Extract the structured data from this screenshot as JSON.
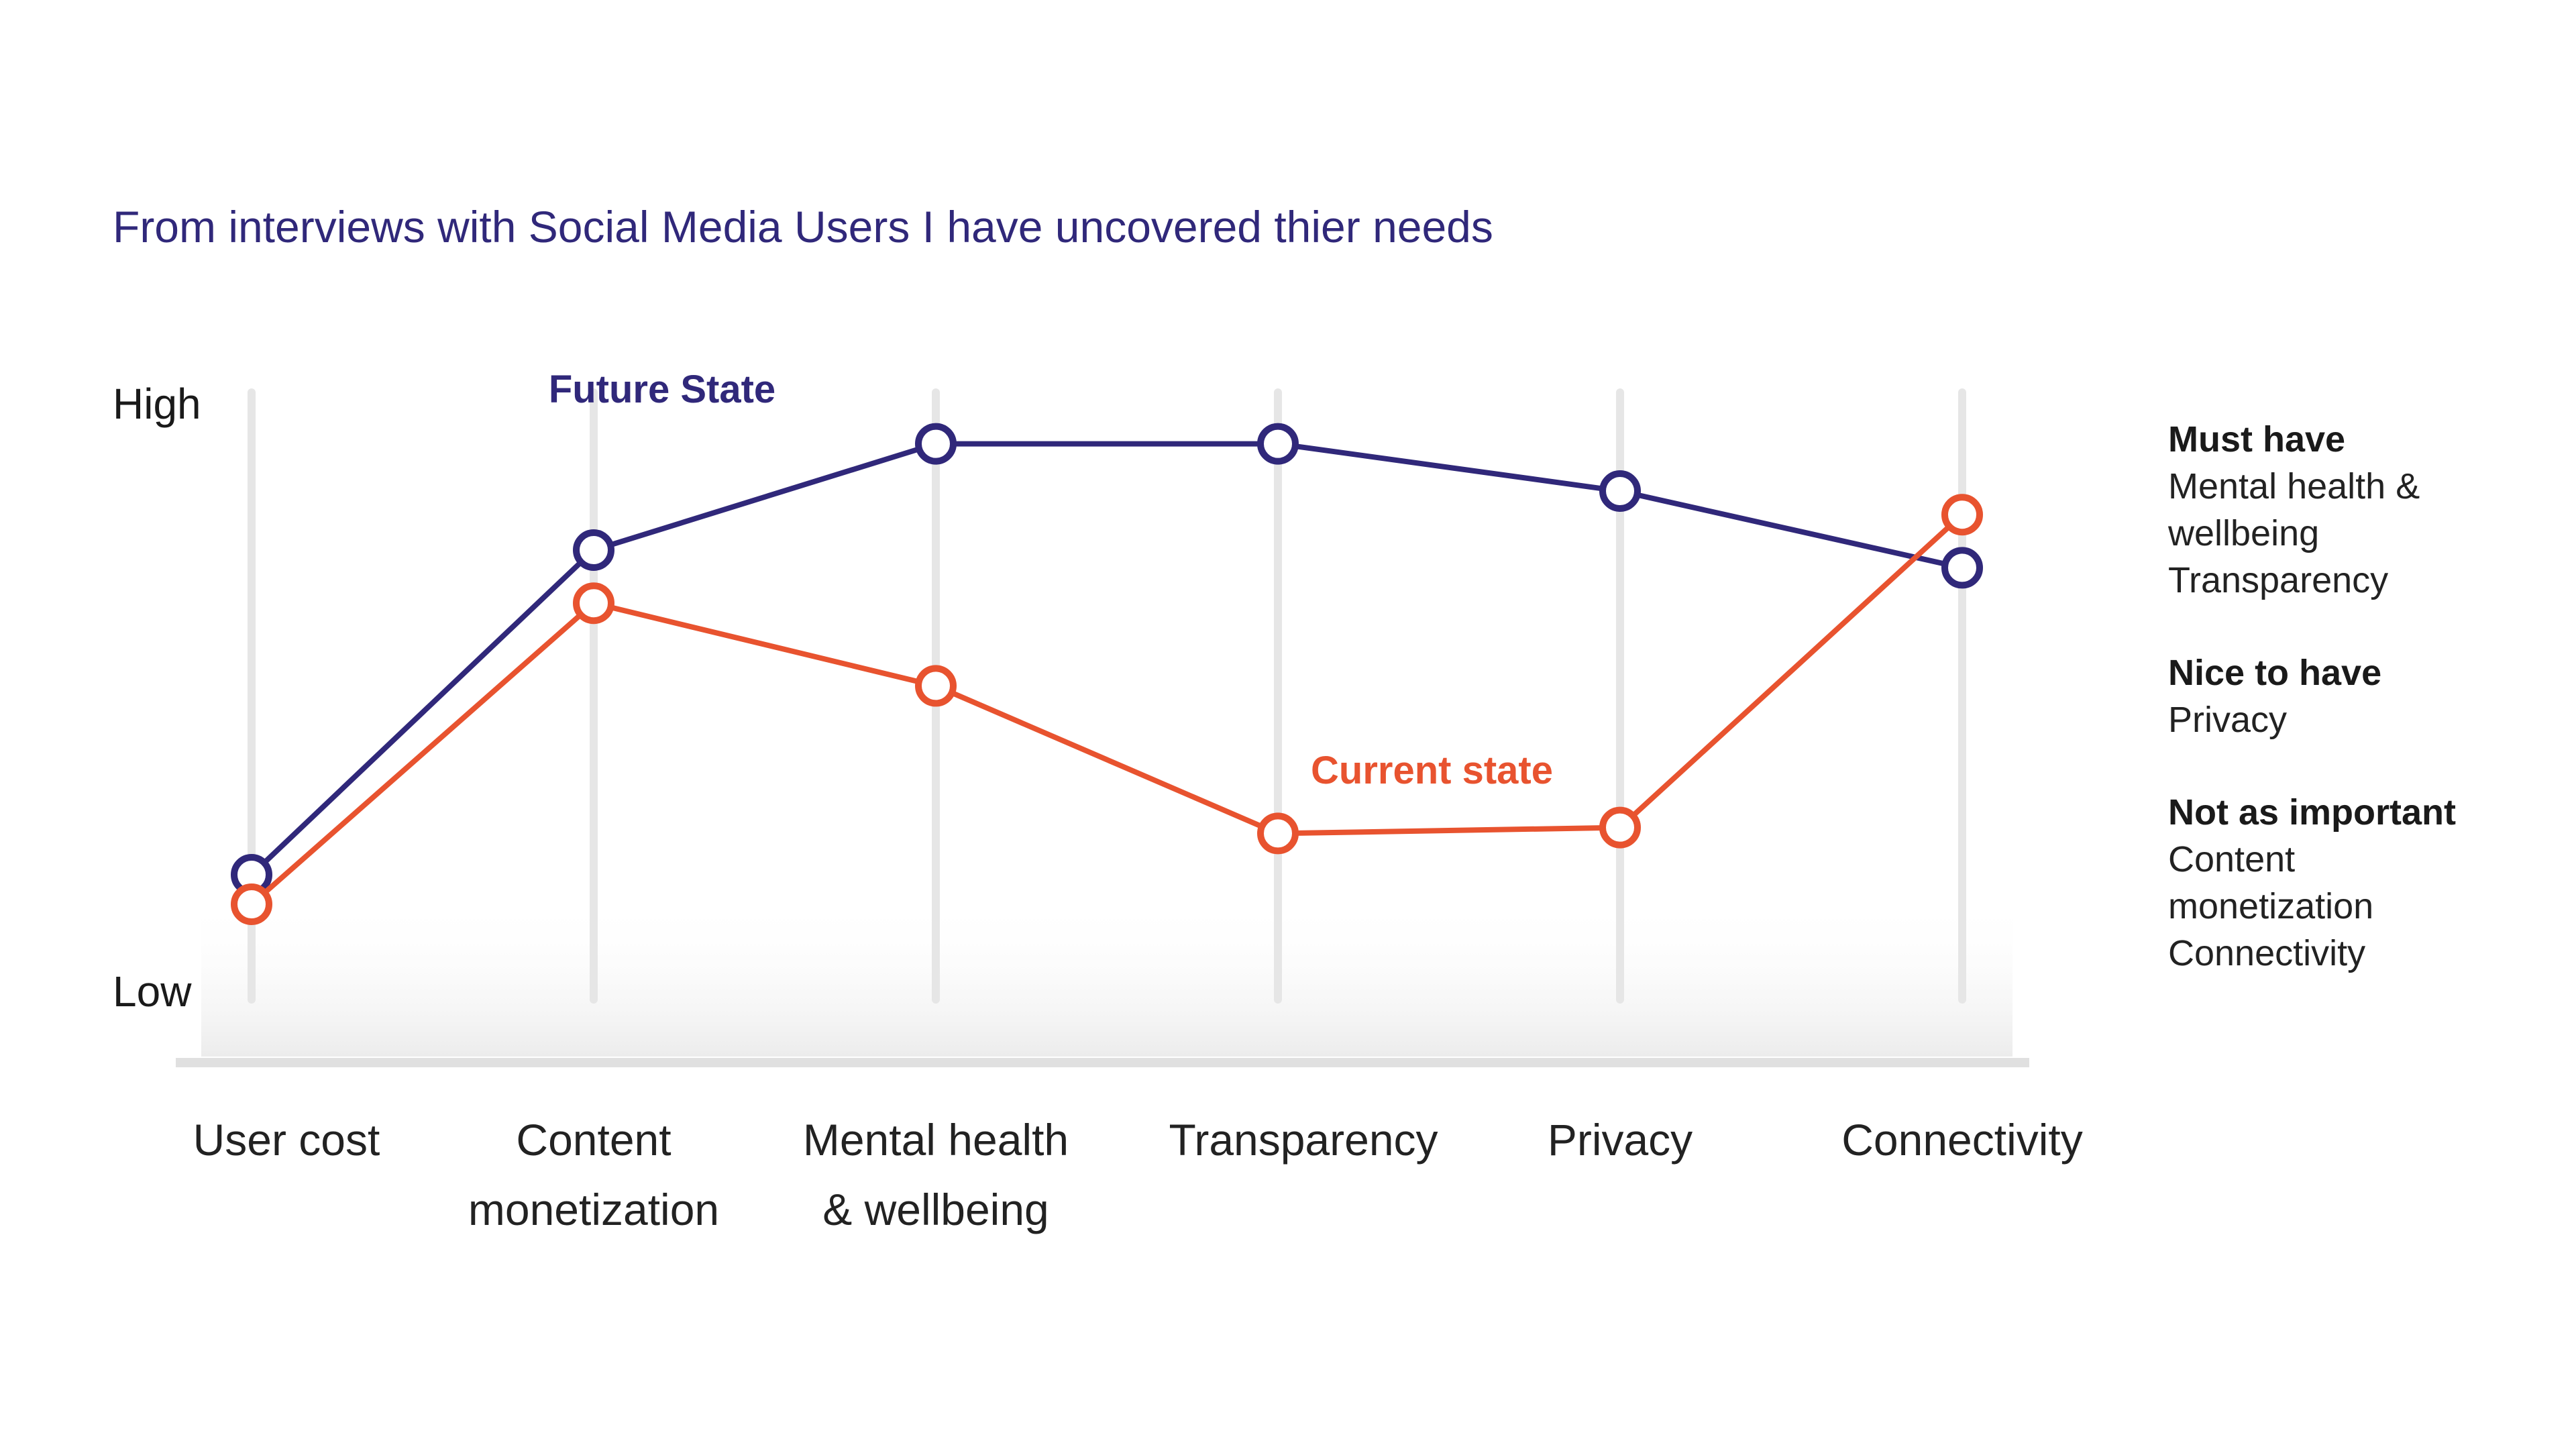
{
  "title": "From interviews with Social Media Users I have uncovered thier needs",
  "chart_data": {
    "type": "line",
    "categories": [
      "User cost",
      "Content monetization",
      "Mental health & wellbeing",
      "Transparency",
      "Privacy",
      "Connectivity"
    ],
    "category_lines": [
      [
        "User cost"
      ],
      [
        "Content",
        "monetization"
      ],
      [
        "Mental health",
        "& wellbeing"
      ],
      [
        "Transparency"
      ],
      [
        "Privacy"
      ],
      [
        "Connectivity"
      ]
    ],
    "y_labels": {
      "high": "High",
      "low": "Low"
    },
    "ylim": [
      0,
      100
    ],
    "series": [
      {
        "name": "Future State",
        "color": "#30287a",
        "values": [
          20,
          75,
          93,
          93,
          85,
          72
        ]
      },
      {
        "name": "Current state",
        "color": "#e8532f",
        "values": [
          15,
          66,
          52,
          27,
          28,
          81
        ]
      }
    ],
    "grid": "vertical"
  },
  "legend": [
    {
      "heading": "Must have",
      "items": [
        "Mental health &",
        "wellbeing",
        "Transparency"
      ]
    },
    {
      "heading": "Nice to have",
      "items": [
        "Privacy"
      ]
    },
    {
      "heading": "Not as important",
      "items": [
        "Content",
        "monetization",
        "Connectivity"
      ]
    }
  ]
}
